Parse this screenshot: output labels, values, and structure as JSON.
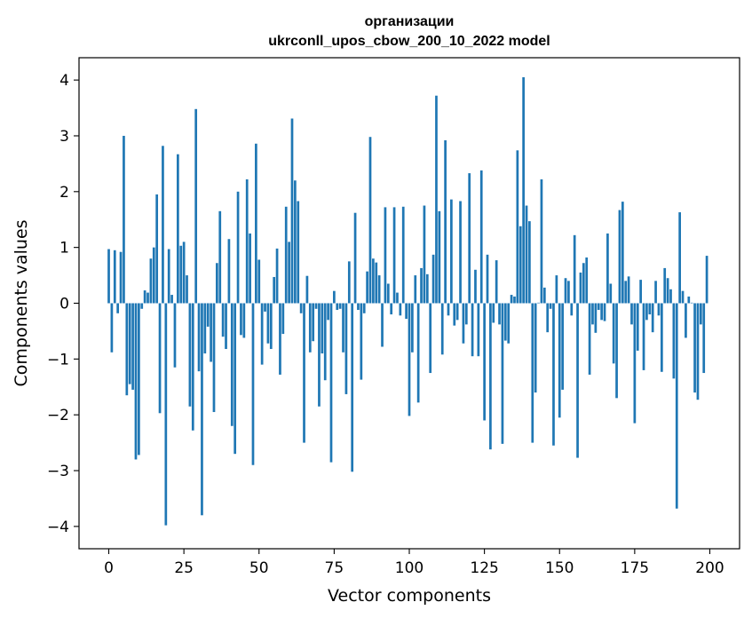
{
  "chart_data": {
    "type": "bar",
    "title_line1": "организации",
    "title_line2": "ukrconll_upos_cbow_200_10_2022 model",
    "xlabel": "Vector components",
    "ylabel": "Components values",
    "xlim": [
      -9.9,
      209.9
    ],
    "ylim": [
      -4.4,
      4.4
    ],
    "xticks": [
      0,
      25,
      50,
      75,
      100,
      125,
      150,
      175,
      200
    ],
    "yticks": [
      -4,
      -3,
      -2,
      -1,
      0,
      1,
      2,
      3,
      4
    ],
    "xtick_labels": [
      "0",
      "25",
      "50",
      "75",
      "100",
      "125",
      "150",
      "175",
      "200"
    ],
    "ytick_labels": [
      "−4",
      "−3",
      "−2",
      "−1",
      "0",
      "1",
      "2",
      "3",
      "4"
    ],
    "bar_color": "#1f77b4",
    "grid": false,
    "legend": "none",
    "x": [
      0,
      1,
      2,
      3,
      4,
      5,
      6,
      7,
      8,
      9,
      10,
      11,
      12,
      13,
      14,
      15,
      16,
      17,
      18,
      19,
      20,
      21,
      22,
      23,
      24,
      25,
      26,
      27,
      28,
      29,
      30,
      31,
      32,
      33,
      34,
      35,
      36,
      37,
      38,
      39,
      40,
      41,
      42,
      43,
      44,
      45,
      46,
      47,
      48,
      49,
      50,
      51,
      52,
      53,
      54,
      55,
      56,
      57,
      58,
      59,
      60,
      61,
      62,
      63,
      64,
      65,
      66,
      67,
      68,
      69,
      70,
      71,
      72,
      73,
      74,
      75,
      76,
      77,
      78,
      79,
      80,
      81,
      82,
      83,
      84,
      85,
      86,
      87,
      88,
      89,
      90,
      91,
      92,
      93,
      94,
      95,
      96,
      97,
      98,
      99,
      100,
      101,
      102,
      103,
      104,
      105,
      106,
      107,
      108,
      109,
      110,
      111,
      112,
      113,
      114,
      115,
      116,
      117,
      118,
      119,
      120,
      121,
      122,
      123,
      124,
      125,
      126,
      127,
      128,
      129,
      130,
      131,
      132,
      133,
      134,
      135,
      136,
      137,
      138,
      139,
      140,
      141,
      142,
      143,
      144,
      145,
      146,
      147,
      148,
      149,
      150,
      151,
      152,
      153,
      154,
      155,
      156,
      157,
      158,
      159,
      160,
      161,
      162,
      163,
      164,
      165,
      166,
      167,
      168,
      169,
      170,
      171,
      172,
      173,
      174,
      175,
      176,
      177,
      178,
      179,
      180,
      181,
      182,
      183,
      184,
      185,
      186,
      187,
      188,
      189,
      190,
      191,
      192,
      193,
      194,
      195,
      196,
      197,
      198,
      199
    ],
    "values": [
      0.97,
      -0.88,
      0.95,
      -0.18,
      0.92,
      3.0,
      -1.65,
      -1.45,
      -1.55,
      -2.8,
      -2.72,
      -0.1,
      0.23,
      0.19,
      0.8,
      1.0,
      1.95,
      -1.97,
      2.82,
      -3.98,
      0.97,
      0.15,
      -1.15,
      2.67,
      1.03,
      1.1,
      0.5,
      -1.85,
      -2.28,
      3.48,
      -1.22,
      -3.8,
      -0.9,
      -0.42,
      -1.05,
      -1.95,
      0.72,
      1.65,
      -0.6,
      -0.82,
      1.15,
      -2.2,
      -2.7,
      2.0,
      -0.57,
      -0.62,
      2.22,
      1.25,
      -2.9,
      2.86,
      0.78,
      -1.1,
      -0.15,
      -0.72,
      -0.82,
      0.47,
      0.98,
      -1.28,
      -0.55,
      1.73,
      1.1,
      3.31,
      2.2,
      1.83,
      -0.18,
      -2.5,
      0.49,
      -0.88,
      -0.68,
      -0.1,
      -1.85,
      -0.9,
      -1.38,
      -0.3,
      -2.85,
      0.22,
      -0.12,
      -0.1,
      -0.88,
      -1.63,
      0.75,
      -3.02,
      1.62,
      -0.12,
      -1.37,
      -0.18,
      0.57,
      2.98,
      0.8,
      0.73,
      0.5,
      -0.78,
      1.72,
      0.35,
      -0.2,
      1.72,
      0.19,
      -0.22,
      1.73,
      -0.28,
      -2.02,
      -0.88,
      0.5,
      -1.78,
      0.63,
      1.75,
      0.52,
      -1.25,
      0.87,
      3.72,
      1.65,
      -0.92,
      2.92,
      -0.22,
      1.86,
      -0.4,
      -0.3,
      1.83,
      -0.72,
      -0.38,
      2.33,
      -0.95,
      0.6,
      -0.95,
      2.38,
      -2.1,
      0.87,
      -2.62,
      -0.35,
      0.77,
      -0.38,
      -2.52,
      -0.67,
      -0.72,
      0.15,
      0.12,
      2.74,
      1.38,
      4.05,
      1.75,
      1.47,
      -2.5,
      -1.6,
      0.01,
      2.22,
      0.28,
      -0.52,
      -0.1,
      -2.55,
      0.5,
      -2.05,
      -1.55,
      0.45,
      0.4,
      -0.22,
      1.22,
      -2.77,
      0.55,
      0.72,
      0.82,
      -1.28,
      -0.38,
      -0.53,
      -0.12,
      -0.3,
      -0.32,
      1.25,
      0.35,
      -1.08,
      -1.7,
      1.67,
      1.82,
      0.4,
      0.48,
      -0.38,
      -2.15,
      -0.85,
      0.42,
      -1.2,
      -0.3,
      -0.2,
      -0.52,
      0.4,
      -0.22,
      -1.23,
      0.63,
      0.45,
      0.25,
      -1.35,
      -3.68,
      1.63,
      0.22,
      -0.62,
      0.12,
      0.01,
      -1.6,
      -1.73,
      -0.38,
      -1.25,
      0.85
    ]
  }
}
